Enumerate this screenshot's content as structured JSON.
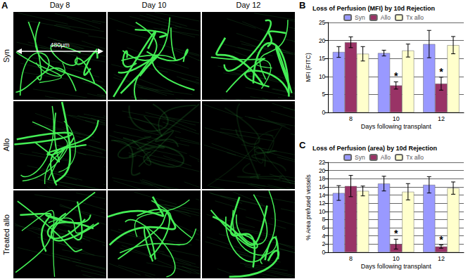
{
  "figure_panel_a": {
    "label": "A",
    "columns": [
      "Day 8",
      "Day 10",
      "Day 12"
    ],
    "rows": [
      "Syn",
      "Allo",
      "Treated allo"
    ],
    "scale_bar": "480µm"
  },
  "chart_data": [
    {
      "panel": "B",
      "type": "bar",
      "title": "Loss of Perfusion (MFI) by 10d Rejection",
      "x_label": "Days following transplant",
      "y_label": "MFI (FITC)",
      "categories": [
        "8",
        "10",
        "12"
      ],
      "series": [
        {
          "name": "Syn",
          "color": "#9999ff",
          "values": [
            16.8,
            16.5,
            19.0
          ],
          "errors": [
            1.5,
            0.8,
            3.8
          ]
        },
        {
          "name": "Allo",
          "color": "#993366",
          "values": [
            19.5,
            7.5,
            8.0
          ],
          "errors": [
            1.5,
            1.0,
            1.8
          ]
        },
        {
          "name": "Tx allo",
          "color": "#ffffcc",
          "values": [
            16.3,
            17.2,
            18.7
          ],
          "errors": [
            2.0,
            1.8,
            2.4
          ]
        }
      ],
      "ylim": [
        0,
        25
      ],
      "yticks": [
        0,
        5,
        10,
        15,
        20,
        25
      ],
      "grid": true,
      "legend": "top",
      "annotations": [
        {
          "text": "*",
          "series": "Allo",
          "category": "10"
        },
        {
          "text": "*",
          "series": "Allo",
          "category": "12"
        }
      ]
    },
    {
      "panel": "C",
      "type": "bar",
      "title": "Loss of Perfusion (area) by 10d Rejection",
      "x_label": "Days following transplant",
      "y_label": "% Area prefused vessels",
      "categories": [
        "8",
        "10",
        "12"
      ],
      "series": [
        {
          "name": "Syn",
          "color": "#9999ff",
          "values": [
            14.5,
            16.8,
            16.5
          ],
          "errors": [
            1.8,
            1.8,
            2.0
          ]
        },
        {
          "name": "Allo",
          "color": "#993366",
          "values": [
            16.2,
            2.0,
            1.4
          ],
          "errors": [
            2.6,
            1.2,
            0.4
          ]
        },
        {
          "name": "Tx allo",
          "color": "#ffffcc",
          "values": [
            15.0,
            14.8,
            15.7
          ],
          "errors": [
            1.2,
            2.0,
            1.5
          ]
        }
      ],
      "ylim": [
        0,
        22
      ],
      "yticks": [
        0,
        2,
        4,
        6,
        8,
        10,
        12,
        14,
        16,
        18,
        20,
        22
      ],
      "grid": true,
      "legend": "top",
      "annotations": [
        {
          "text": "*",
          "series": "Allo",
          "category": "10"
        },
        {
          "text": "*",
          "series": "Allo",
          "category": "12"
        }
      ]
    }
  ]
}
